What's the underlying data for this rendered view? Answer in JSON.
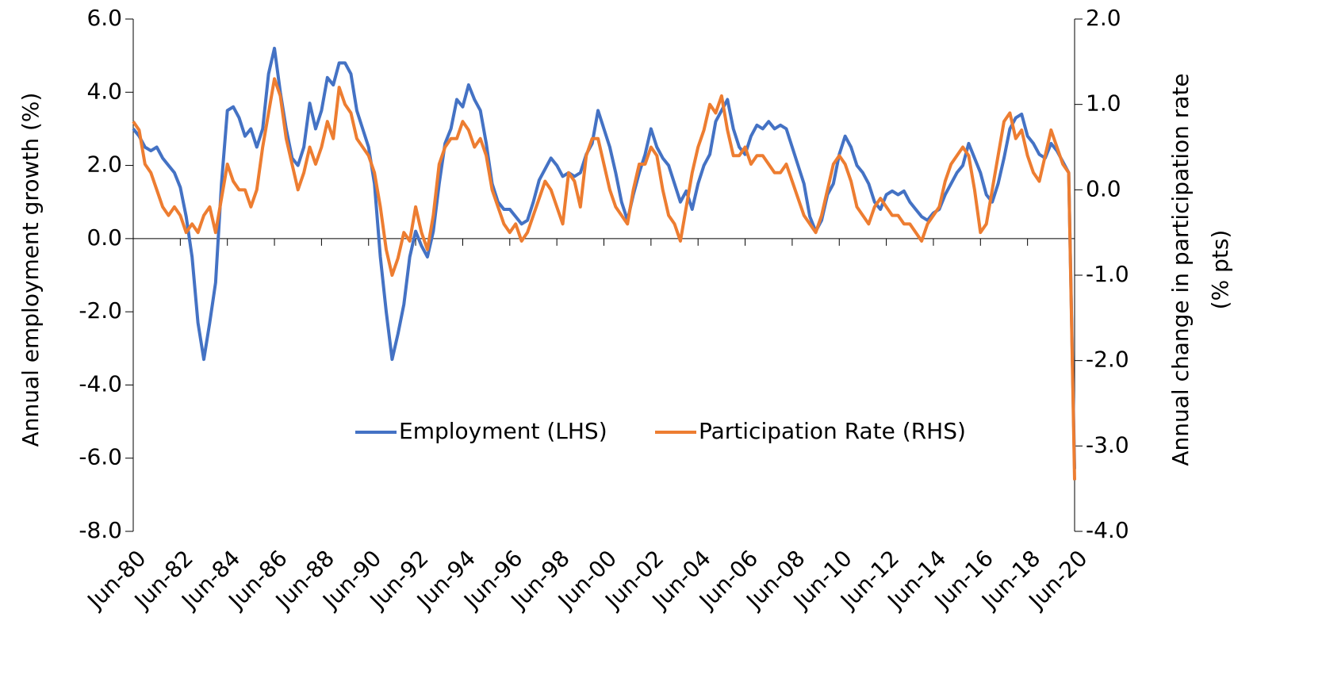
{
  "chart_data": {
    "type": "line",
    "ylabel": "Annual employment growth (%)",
    "y2label": [
      "Annual change in participation rate",
      "(% pts)"
    ],
    "categories": [
      "Jun-80",
      null,
      null,
      null,
      null,
      null,
      null,
      null,
      "Jun-82",
      null,
      null,
      null,
      null,
      null,
      null,
      null,
      "Jun-84",
      null,
      null,
      null,
      null,
      null,
      null,
      null,
      "Jun-86",
      null,
      null,
      null,
      null,
      null,
      null,
      null,
      "Jun-88",
      null,
      null,
      null,
      null,
      null,
      null,
      null,
      "Jun-90",
      null,
      null,
      null,
      null,
      null,
      null,
      null,
      "Jun-92",
      null,
      null,
      null,
      null,
      null,
      null,
      null,
      "Jun-94",
      null,
      null,
      null,
      null,
      null,
      null,
      null,
      "Jun-96",
      null,
      null,
      null,
      null,
      null,
      null,
      null,
      "Jun-98",
      null,
      null,
      null,
      null,
      null,
      null,
      null,
      "Jun-00",
      null,
      null,
      null,
      null,
      null,
      null,
      null,
      "Jun-02",
      null,
      null,
      null,
      null,
      null,
      null,
      null,
      "Jun-04",
      null,
      null,
      null,
      null,
      null,
      null,
      null,
      "Jun-06",
      null,
      null,
      null,
      null,
      null,
      null,
      null,
      "Jun-08",
      null,
      null,
      null,
      null,
      null,
      null,
      null,
      "Jun-10",
      null,
      null,
      null,
      null,
      null,
      null,
      null,
      "Jun-12",
      null,
      null,
      null,
      null,
      null,
      null,
      null,
      "Jun-14",
      null,
      null,
      null,
      null,
      null,
      null,
      null,
      "Jun-16",
      null,
      null,
      null,
      null,
      null,
      null,
      null,
      "Jun-18",
      null,
      null,
      null,
      null,
      null,
      null,
      null,
      "Jun-20"
    ],
    "series": [
      {
        "name": "Employment (LHS)",
        "color": "#4472c4",
        "axis": "y",
        "values": [
          3.0,
          2.8,
          2.5,
          2.4,
          2.5,
          2.2,
          2.0,
          1.8,
          1.4,
          0.6,
          -0.5,
          -2.3,
          -3.3,
          -2.3,
          -1.2,
          1.5,
          3.5,
          3.6,
          3.3,
          2.8,
          3.0,
          2.5,
          3.0,
          4.5,
          5.2,
          4.0,
          3.0,
          2.2,
          2.0,
          2.5,
          3.7,
          3.0,
          3.5,
          4.4,
          4.2,
          4.8,
          4.8,
          4.5,
          3.5,
          3.0,
          2.5,
          1.5,
          -0.5,
          -2.0,
          -3.3,
          -2.6,
          -1.8,
          -0.5,
          0.2,
          -0.2,
          -0.5,
          0.2,
          1.5,
          2.6,
          3.0,
          3.8,
          3.6,
          4.2,
          3.8,
          3.5,
          2.6,
          1.5,
          1.0,
          0.8,
          0.8,
          0.6,
          0.4,
          0.5,
          1.0,
          1.6,
          1.9,
          2.2,
          2.0,
          1.7,
          1.8,
          1.7,
          1.8,
          2.3,
          2.6,
          3.5,
          3.0,
          2.5,
          1.8,
          1.0,
          0.5,
          1.2,
          1.8,
          2.3,
          3.0,
          2.5,
          2.2,
          2.0,
          1.5,
          1.0,
          1.3,
          0.8,
          1.5,
          2.0,
          2.3,
          3.2,
          3.5,
          3.8,
          3.0,
          2.5,
          2.3,
          2.8,
          3.1,
          3.0,
          3.2,
          3.0,
          3.1,
          3.0,
          2.5,
          2.0,
          1.5,
          0.6,
          0.2,
          0.5,
          1.2,
          1.5,
          2.3,
          2.8,
          2.5,
          2.0,
          1.8,
          1.5,
          1.0,
          0.8,
          1.2,
          1.3,
          1.2,
          1.3,
          1.0,
          0.8,
          0.6,
          0.5,
          0.7,
          0.8,
          1.2,
          1.5,
          1.8,
          2.0,
          2.6,
          2.2,
          1.8,
          1.2,
          1.0,
          1.5,
          2.2,
          3.0,
          3.3,
          3.4,
          2.8,
          2.6,
          2.3,
          2.2,
          2.6,
          2.4,
          2.1,
          1.8,
          -6.3
        ]
      },
      {
        "name": "Participation Rate (RHS)",
        "color": "#ed7d31",
        "axis": "y2",
        "values": [
          0.8,
          0.7,
          0.3,
          0.2,
          0.0,
          -0.2,
          -0.3,
          -0.2,
          -0.3,
          -0.5,
          -0.4,
          -0.5,
          -0.3,
          -0.2,
          -0.5,
          -0.1,
          0.3,
          0.1,
          0.0,
          0.0,
          -0.2,
          0.0,
          0.5,
          0.9,
          1.3,
          1.1,
          0.6,
          0.3,
          0.0,
          0.2,
          0.5,
          0.3,
          0.5,
          0.8,
          0.6,
          1.2,
          1.0,
          0.9,
          0.6,
          0.5,
          0.4,
          0.2,
          -0.2,
          -0.7,
          -1.0,
          -0.8,
          -0.5,
          -0.6,
          -0.2,
          -0.5,
          -0.7,
          -0.3,
          0.3,
          0.5,
          0.6,
          0.6,
          0.8,
          0.7,
          0.5,
          0.6,
          0.4,
          0.0,
          -0.2,
          -0.4,
          -0.5,
          -0.4,
          -0.6,
          -0.5,
          -0.3,
          -0.1,
          0.1,
          0.0,
          -0.2,
          -0.4,
          0.2,
          0.1,
          -0.2,
          0.4,
          0.6,
          0.6,
          0.3,
          0.0,
          -0.2,
          -0.3,
          -0.4,
          0.0,
          0.3,
          0.3,
          0.5,
          0.4,
          0.0,
          -0.3,
          -0.4,
          -0.6,
          -0.2,
          0.2,
          0.5,
          0.7,
          1.0,
          0.9,
          1.1,
          0.7,
          0.4,
          0.4,
          0.5,
          0.3,
          0.4,
          0.4,
          0.3,
          0.2,
          0.2,
          0.3,
          0.1,
          -0.1,
          -0.3,
          -0.4,
          -0.5,
          -0.3,
          0.0,
          0.3,
          0.4,
          0.3,
          0.1,
          -0.2,
          -0.3,
          -0.4,
          -0.2,
          -0.1,
          -0.2,
          -0.3,
          -0.3,
          -0.4,
          -0.4,
          -0.5,
          -0.6,
          -0.4,
          -0.3,
          -0.2,
          0.1,
          0.3,
          0.4,
          0.5,
          0.4,
          0.0,
          -0.5,
          -0.4,
          0.0,
          0.4,
          0.8,
          0.9,
          0.6,
          0.7,
          0.4,
          0.2,
          0.1,
          0.4,
          0.7,
          0.5,
          0.3,
          0.2,
          -3.4
        ]
      }
    ],
    "ylim": [
      -8,
      6
    ],
    "yticks": [
      {
        "value": -8,
        "label": "-8.0"
      },
      {
        "value": -6,
        "label": "-6.0"
      },
      {
        "value": -4,
        "label": "-4.0"
      },
      {
        "value": -2,
        "label": "-2.0"
      },
      {
        "value": 0,
        "label": "0.0"
      },
      {
        "value": 2,
        "label": "2.0"
      },
      {
        "value": 4,
        "label": "4.0"
      },
      {
        "value": 6,
        "label": "6.0"
      }
    ],
    "y2lim": [
      -4,
      2
    ],
    "y2ticks": [
      {
        "value": -4,
        "label": "-4.0"
      },
      {
        "value": -3,
        "label": "-3.0"
      },
      {
        "value": -2,
        "label": "-2.0"
      },
      {
        "value": -1,
        "label": "-1.0"
      },
      {
        "value": 0,
        "label": "0.0"
      },
      {
        "value": 1,
        "label": "1.0"
      },
      {
        "value": 2,
        "label": "2.0"
      }
    ],
    "grid": false,
    "legend": "center"
  }
}
